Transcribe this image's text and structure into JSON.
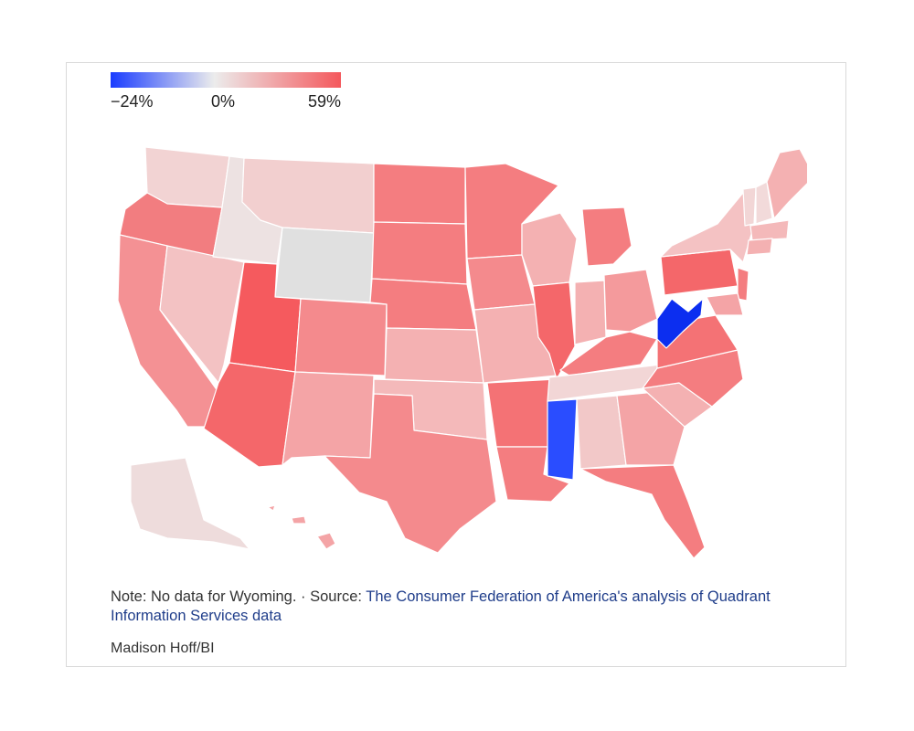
{
  "legend": {
    "min_label": "−24%",
    "mid_label": "0%",
    "max_label": "59%",
    "min_color": "#1a3cff",
    "mid_color": "#ececec",
    "max_color": "#f4585c"
  },
  "map_data": {
    "type": "choropleth",
    "region": "United States",
    "scale": {
      "min": -24,
      "mid": 0,
      "max": 59,
      "unit": "%"
    },
    "no_data_states": [
      "Wyoming"
    ],
    "no_data_color": "#e0e0e0"
  },
  "footer": {
    "note_text": "Note: No data for Wyoming. · Source: ",
    "source_link": "The Consumer Federation of America's analysis of Quadrant Information Services data",
    "credit": "Madison Hoff/BI"
  }
}
